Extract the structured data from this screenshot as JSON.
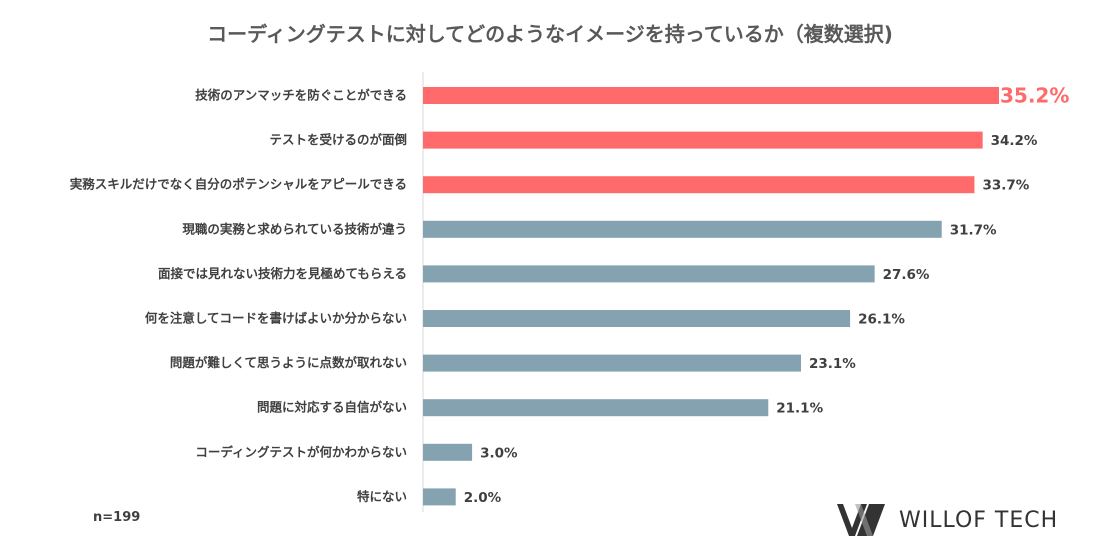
{
  "title": "コーディングテストに対してどのようなイメージを持っているか（複数選択)",
  "sample_size": "n=199",
  "brand": {
    "name": "WILLOF TECH",
    "logo_icon": "willof-logo-icon"
  },
  "colors": {
    "highlight": "#ff6b6b",
    "default": "#85a2b0",
    "axis": "#d9d9d9",
    "highlight_label": "#ff6b6b",
    "label": "#404040"
  },
  "chart_data": {
    "type": "bar",
    "orientation": "horizontal",
    "title": "コーディングテストに対してどのようなイメージを持っているか（複数選択)",
    "categories": [
      "技術のアンマッチを防ぐことができる",
      "テストを受けるのが面倒",
      "実務スキルだけでなく自分のポテンシャルをアピールできる",
      "現職の実務と求められている技術が違う",
      "面接では見れない技術力を見極めてもらえる",
      "何を注意してコードを書けばよいか分からない",
      "問題が難しくて思うように点数が取れない",
      "問題に対応する自信がない",
      "コーディングテストが何かわからない",
      "特にない"
    ],
    "values": [
      35.2,
      34.2,
      33.7,
      31.7,
      27.6,
      26.1,
      23.1,
      21.1,
      3.0,
      2.0
    ],
    "value_labels": [
      "35.2%",
      "34.2%",
      "33.7%",
      "31.7%",
      "27.6%",
      "26.1%",
      "23.1%",
      "21.1%",
      "3.0%",
      "2.0%"
    ],
    "highlighted": [
      true,
      true,
      true,
      false,
      false,
      false,
      false,
      false,
      false,
      false
    ],
    "xlim": [
      0,
      35.2
    ],
    "unit": "%",
    "grid": false,
    "legend": "none"
  }
}
